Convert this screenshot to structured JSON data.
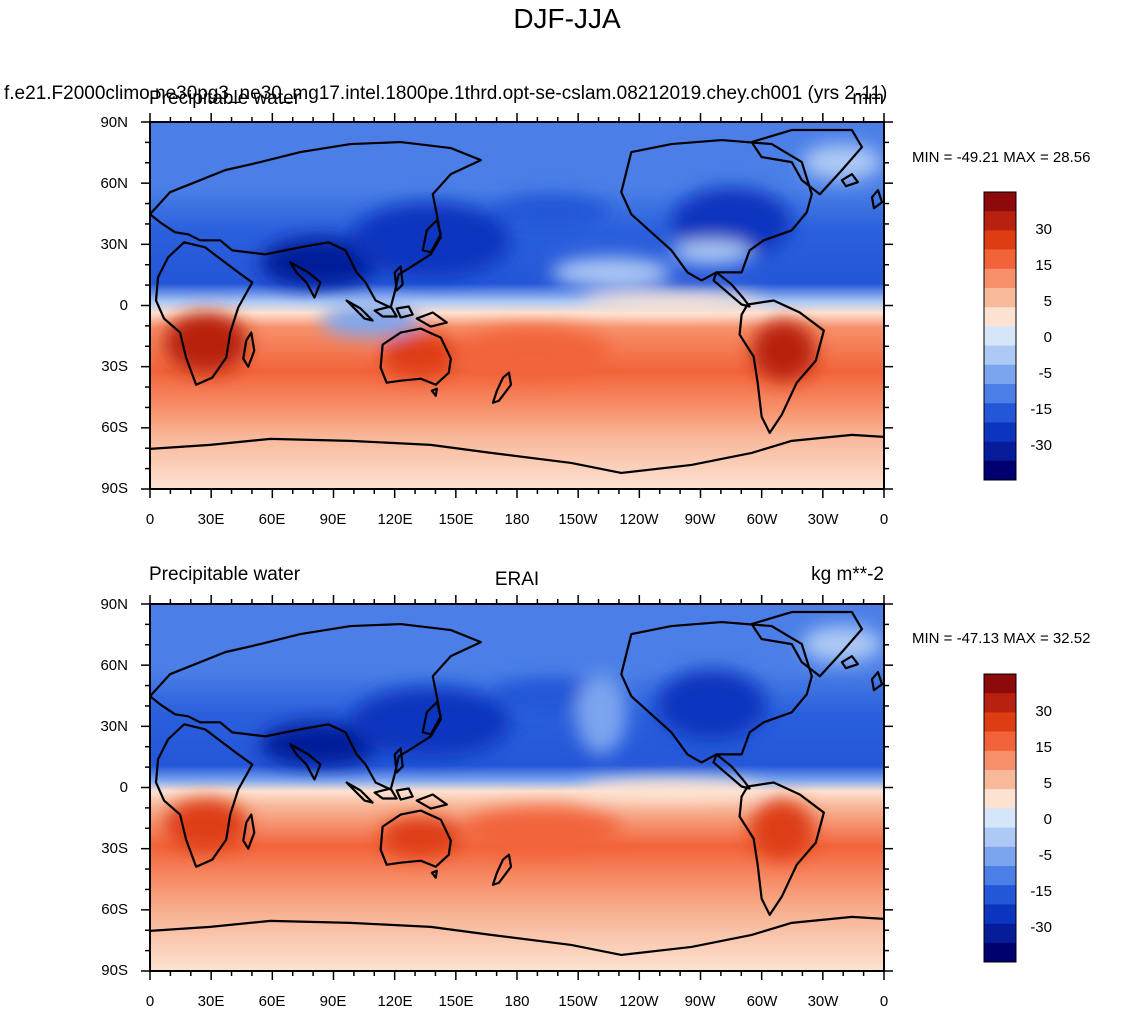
{
  "figure": {
    "title": "DJF-JJA"
  },
  "axes": {
    "lat_ticks": [
      "90N",
      "60N",
      "30N",
      "0",
      "30S",
      "60S",
      "90S"
    ],
    "lon_ticks": [
      "0",
      "30E",
      "60E",
      "90E",
      "120E",
      "150E",
      "180",
      "150W",
      "120W",
      "90W",
      "60W",
      "30W",
      "0"
    ]
  },
  "colorbar": {
    "labels": [
      "30",
      "15",
      "5",
      "0",
      "-5",
      "-15",
      "-30"
    ],
    "colors": [
      "#8c0a0a",
      "#b8200f",
      "#de3d14",
      "#f2633a",
      "#f7906a",
      "#f8b89a",
      "#fde2d2",
      "#d6e6f9",
      "#adc9f5",
      "#7ba5ef",
      "#4b7fe7",
      "#2456d8",
      "#0b34bf",
      "#061c99",
      "#00006e"
    ]
  },
  "panels": [
    {
      "left_title": "Precipitable water",
      "overlay_title": "f.e21.F2000climo.ne30pg3_ne30_mg17.intel.1800pe.1thrd.opt-se-cslam.08212019.chey.ch001 (yrs 2-11)",
      "units": "mm",
      "stats": "MIN = -49.21 MAX =  28.56",
      "min": -49.21,
      "max": 28.56
    },
    {
      "left_title": "Precipitable water",
      "center_title": "ERAI",
      "units": "kg m**-2",
      "stats": "MIN = -47.13 MAX =  32.52",
      "min": -47.13,
      "max": 32.52
    }
  ]
}
